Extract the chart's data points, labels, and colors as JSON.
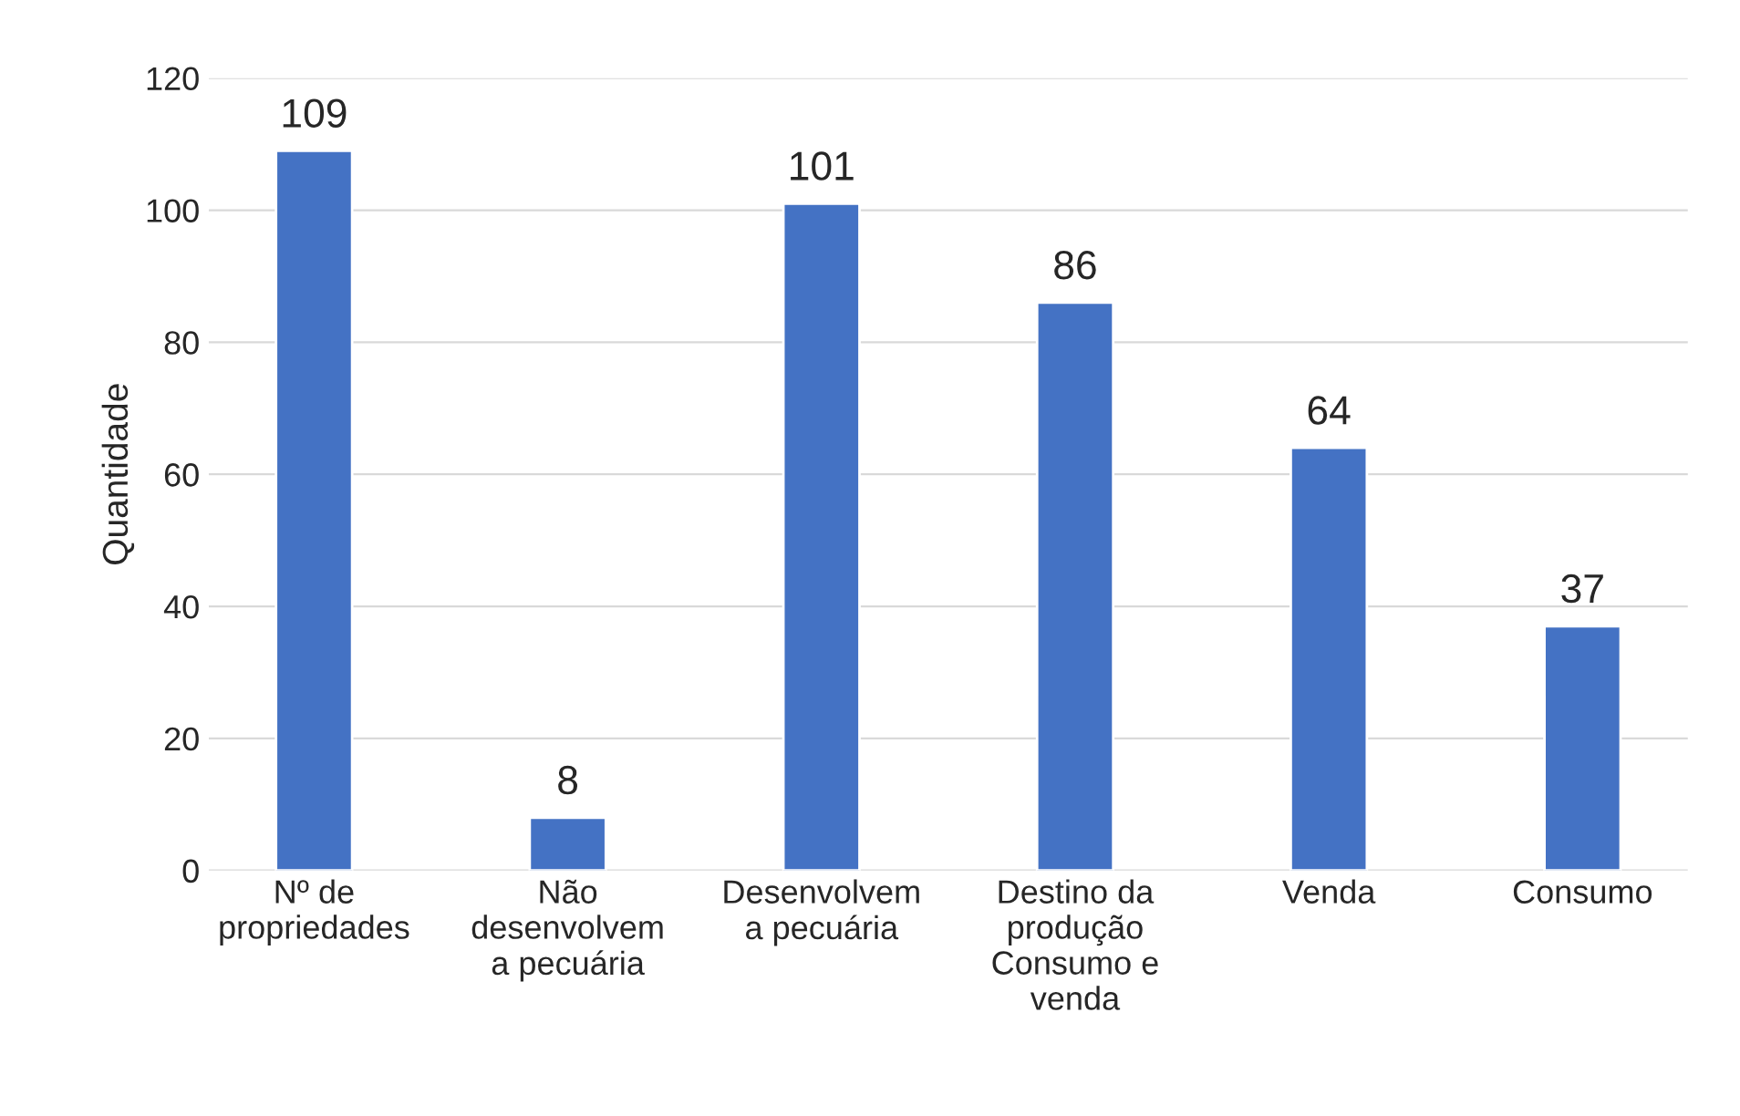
{
  "chart_data": {
    "type": "bar",
    "ylabel": "Quantidade",
    "categories": [
      "Nº de\npropriedades",
      "Não\ndesenvolvem\na pecuária",
      "Desenvolvem\na pecuária",
      "Destino da\nprodução\nConsumo e\nvenda",
      "Venda",
      "Consumo"
    ],
    "values": [
      109,
      8,
      101,
      86,
      64,
      37
    ],
    "color": "#4472c4",
    "ylim": [
      0,
      120
    ],
    "yticks": [
      0,
      20,
      40,
      60,
      80,
      100,
      120
    ],
    "grid": "y",
    "data_labels": true
  }
}
